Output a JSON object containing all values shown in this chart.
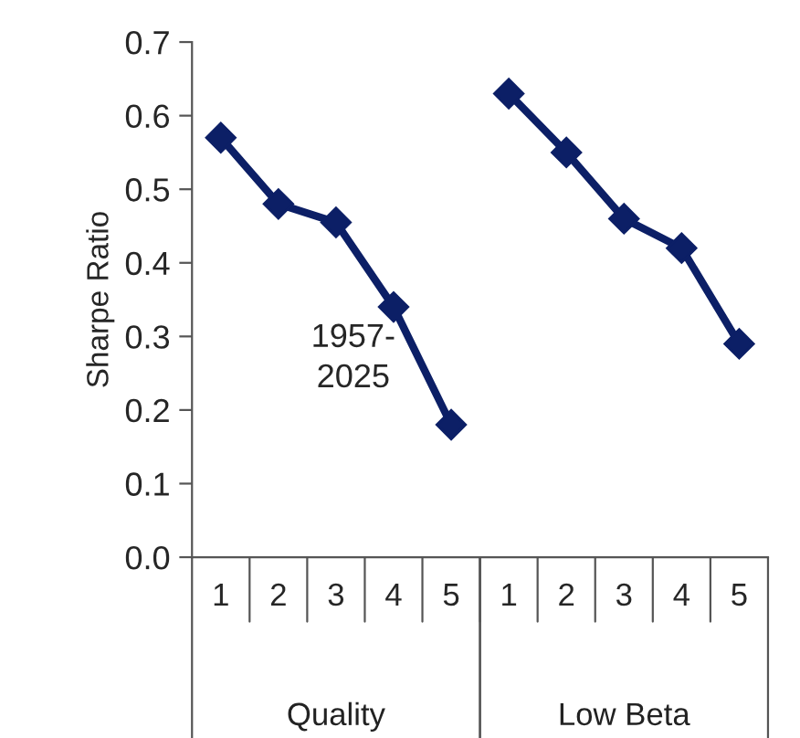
{
  "chart_data": {
    "type": "line",
    "ylabel": "Sharpe Ratio",
    "categories": [
      "1",
      "2",
      "3",
      "4",
      "5",
      "1",
      "2",
      "3",
      "4",
      "5"
    ],
    "series": [
      {
        "color": "#0c1f66",
        "values": [
          0.57,
          0.48,
          0.455,
          0.34,
          0.18,
          null,
          null,
          null,
          null,
          null
        ]
      },
      {
        "color": "#0c1f66",
        "values": [
          null,
          null,
          null,
          null,
          null,
          0.63,
          0.55,
          0.46,
          0.42,
          0.29
        ]
      }
    ],
    "ylim": [
      0,
      0.7
    ],
    "yticks": [
      {
        "value": 0,
        "label": "0.0"
      },
      0.1,
      0.2,
      0.3,
      0.4,
      0.5,
      0.6,
      0.7
    ],
    "annotations": [
      "1957-\n2025",
      "Quality",
      "Low Beta"
    ],
    "marker": "diamond",
    "line_style": "solid",
    "grid": false,
    "legend": false
  }
}
